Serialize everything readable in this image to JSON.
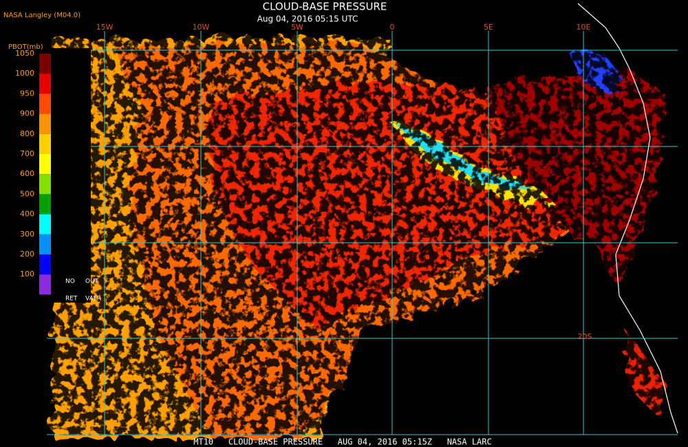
{
  "header": {
    "source": "NASA Langley (M04.0)",
    "title": "CLOUD-BASE PRESSURE",
    "datetime": "Aug 04, 2016 05:15 UTC"
  },
  "legend": {
    "label": "PBOT(mb)",
    "ticks": [
      "1050",
      "1000",
      "950",
      "900",
      "800",
      "700",
      "600",
      "500",
      "400",
      "300",
      "200",
      "100"
    ],
    "colors": [
      "#7a0000",
      "#e80000",
      "#ff4a00",
      "#ff9400",
      "#ffd000",
      "#ffff00",
      "#80e000",
      "#00a000",
      "#00ffff",
      "#0090ff",
      "#0000ff",
      "#8a2be2"
    ],
    "no_retrieval": [
      "NO",
      "RET"
    ],
    "out_of_range": [
      "OUT",
      "VALR"
    ]
  },
  "map": {
    "longitude_labels": [
      "15W",
      "10W",
      "5W",
      "0",
      "5E",
      "10E"
    ],
    "latitude_labels": [
      "20S"
    ]
  },
  "footer": "MT10   CLOUD-BASE PRESSURE   AUG 04, 2016 05:15Z   NASA LARC"
}
